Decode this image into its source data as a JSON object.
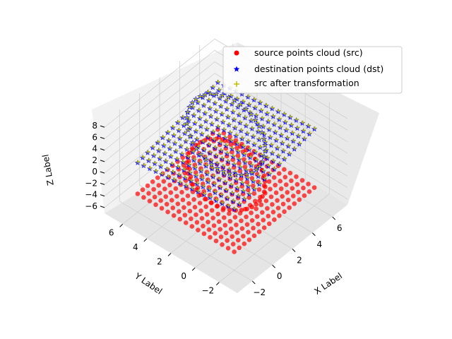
{
  "chart_data": {
    "type": "scatter3d",
    "title": "",
    "xlabel": "X Label",
    "ylabel": "Y Label",
    "zlabel": "Z Label",
    "x_ticks": [
      "−2",
      "0",
      "2",
      "4",
      "6"
    ],
    "y_ticks": [
      "−2",
      "0",
      "2",
      "4",
      "6"
    ],
    "z_ticks": [
      "8",
      "6",
      "4",
      "2",
      "0",
      "−2",
      "−4",
      "−6"
    ],
    "xlim": [
      -3.5,
      7.5
    ],
    "ylim": [
      -3.5,
      7.5
    ],
    "zlim": [
      -7,
      9
    ],
    "grid": true,
    "legend_position": "top-right",
    "series": [
      {
        "name": "source points cloud (src)",
        "marker": "circle",
        "color": "#ff0000",
        "description_of_shape": "flat grid with a circular bump",
        "z_level": -3.8
      },
      {
        "name": "destination points cloud (dst)",
        "marker": "star",
        "color": "#0000ff",
        "description_of_shape": "tilted grid with a raised circular ridge",
        "z_level": 4
      },
      {
        "name": "src after transformation",
        "marker": "plus",
        "color": "#bfbf00",
        "description_of_shape": "overlaps destination cloud",
        "z_level": 4
      }
    ],
    "grid_x_range": [
      -2,
      6
    ],
    "grid_y_range": [
      -2,
      6
    ],
    "grid_step": 0.5
  }
}
